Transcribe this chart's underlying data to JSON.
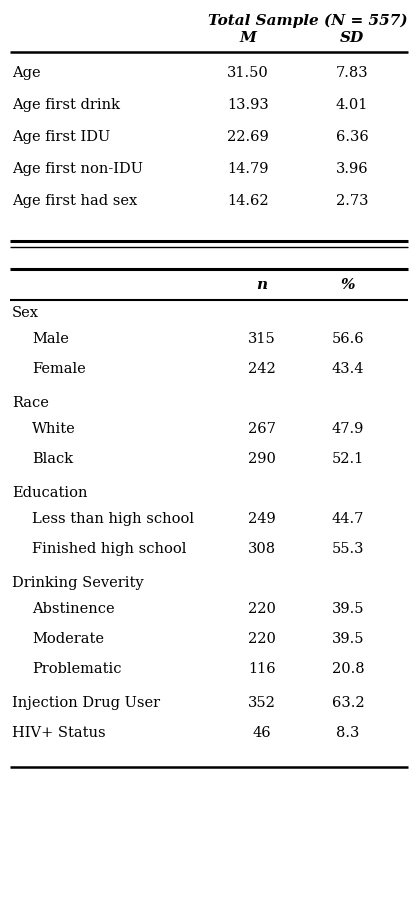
{
  "title": "Total Sample (N = 557)",
  "section1_rows": [
    [
      "Age",
      "31.50",
      "7.83"
    ],
    [
      "Age first drink",
      "13.93",
      "4.01"
    ],
    [
      "Age first IDU",
      "22.69",
      "6.36"
    ],
    [
      "Age first non-IDU",
      "14.79",
      "3.96"
    ],
    [
      "Age first had sex",
      "14.62",
      "2.73"
    ]
  ],
  "section2_groups": [
    {
      "group": "Sex",
      "rows": [
        [
          "Male",
          "315",
          "56.6"
        ],
        [
          "Female",
          "242",
          "43.4"
        ]
      ]
    },
    {
      "group": "Race",
      "rows": [
        [
          "White",
          "267",
          "47.9"
        ],
        [
          "Black",
          "290",
          "52.1"
        ]
      ]
    },
    {
      "group": "Education",
      "rows": [
        [
          "Less than high school",
          "249",
          "44.7"
        ],
        [
          "Finished high school",
          "308",
          "55.3"
        ]
      ]
    },
    {
      "group": "Drinking Severity",
      "rows": [
        [
          "Abstinence",
          "220",
          "39.5"
        ],
        [
          "Moderate",
          "220",
          "39.5"
        ],
        [
          "Problematic",
          "116",
          "20.8"
        ]
      ]
    }
  ],
  "section2_standalone": [
    [
      "Injection Drug User",
      "352",
      "63.2"
    ],
    [
      "HIV+ Status",
      "46",
      "8.3"
    ]
  ],
  "bg_color": "#ffffff",
  "font_size": 10.5,
  "header_font_size": 11
}
